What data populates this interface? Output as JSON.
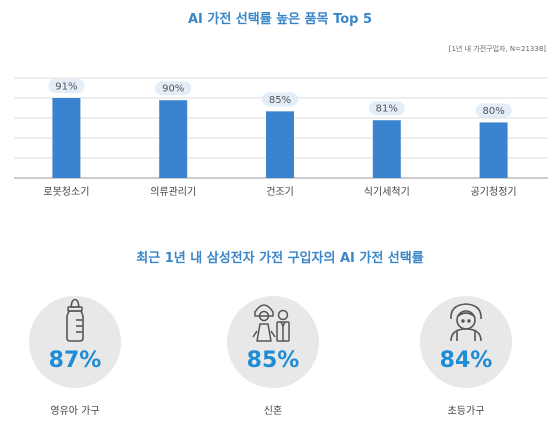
{
  "chart_data": {
    "type": "bar",
    "title": "AI 가전 선택률 높은 품목 Top 5",
    "note": "[1년 내 가전구입자, N=21338]",
    "categories": [
      "로봇청소기",
      "의류관리기",
      "건조기",
      "식기세척기",
      "공기청정기"
    ],
    "values": [
      91,
      90,
      85,
      81,
      80
    ],
    "value_labels": [
      "91%",
      "90%",
      "85%",
      "81%",
      "80%"
    ],
    "xlabel": "",
    "ylabel": "",
    "grid": true,
    "legend": "none"
  },
  "section2": {
    "title": "최근 1년 내 삼성전자 가전 구입자의 AI 가전 선택률",
    "items": [
      {
        "icon": "baby-bottle-icon",
        "value": "87%",
        "label": "영유아 가구"
      },
      {
        "icon": "wedding-couple-icon",
        "value": "85%",
        "label": "신혼"
      },
      {
        "icon": "schoolchild-icon",
        "value": "84%",
        "label": "초등가구"
      }
    ]
  },
  "colors": {
    "accent": "#3a86c8",
    "bar": "#3a84cf",
    "badge": "#e3eef8",
    "circle": "#e8e8e8",
    "stat_value": "#1e8cd6"
  }
}
